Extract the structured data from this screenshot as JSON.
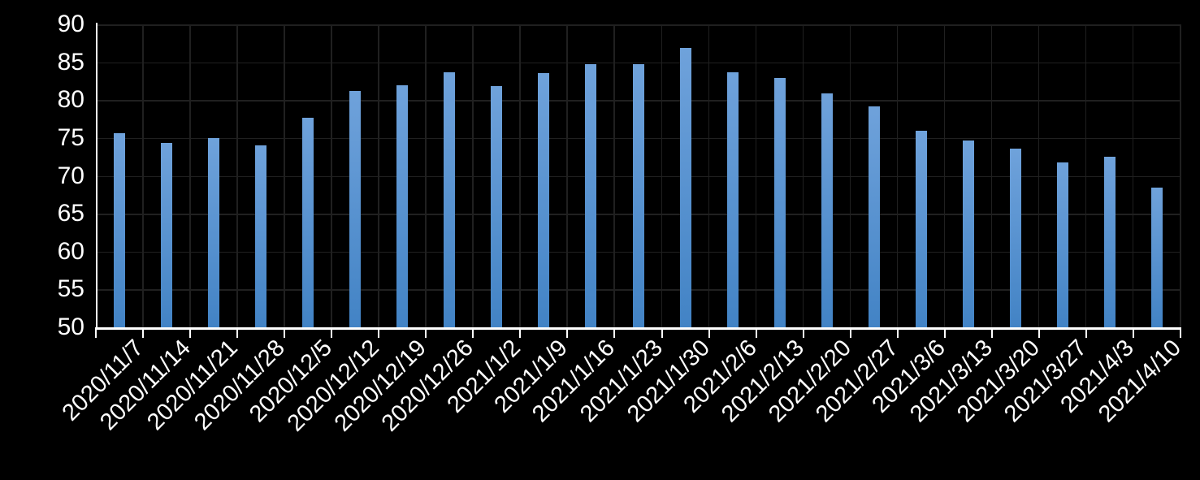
{
  "chart_data": {
    "type": "bar",
    "title": "",
    "xlabel": "",
    "ylabel": "",
    "categories": [
      "2020/11/7",
      "2020/11/14",
      "2020/11/21",
      "2020/11/28",
      "2020/12/5",
      "2020/12/12",
      "2020/12/19",
      "2020/12/26",
      "2021/1/2",
      "2021/1/9",
      "2021/1/16",
      "2021/1/23",
      "2021/1/30",
      "2021/2/6",
      "2021/2/13",
      "2021/2/20",
      "2021/2/27",
      "2021/3/6",
      "2021/3/13",
      "2021/3/20",
      "2021/3/27",
      "2021/4/3",
      "2021/4/10"
    ],
    "values": [
      75.6,
      74.3,
      75.0,
      74.0,
      77.7,
      81.2,
      82.0,
      83.7,
      81.9,
      83.6,
      84.8,
      84.8,
      86.9,
      83.7,
      82.9,
      80.9,
      79.2,
      75.9,
      74.7,
      73.6,
      71.8,
      72.5,
      68.4
    ],
    "ylim": [
      50,
      90
    ],
    "ytick_step": 5,
    "ytick_labels": [
      "50",
      "55",
      "60",
      "65",
      "70",
      "75",
      "80",
      "85",
      "90"
    ],
    "grid": true,
    "legend": false,
    "legend_position": "none"
  },
  "colors": {
    "background": "#000000",
    "bar_gradient_top": "#6FA2DB",
    "bar_gradient_bottom": "#4283C5",
    "gridline": "#202020",
    "axis": "#FFFFFF",
    "text": "#FFFFFF"
  }
}
